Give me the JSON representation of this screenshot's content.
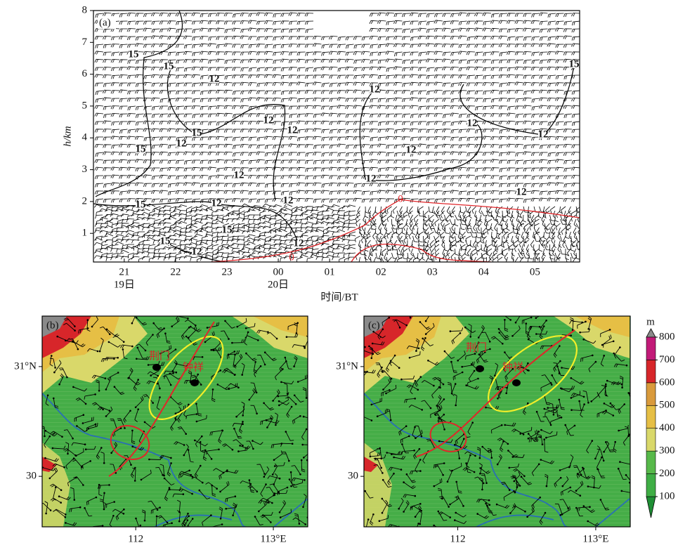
{
  "chart_data": [
    {
      "type": "time-height",
      "panel_label": "(a)",
      "xlabel": "时间/BT",
      "ylabel": "h/km",
      "xlim": [
        20.4,
        29.87
      ],
      "ylim": [
        0.1,
        8
      ],
      "xticks": [
        21,
        22,
        23,
        {
          "value": 24,
          "label": "00"
        },
        {
          "value": 25,
          "label": "01"
        },
        {
          "value": 26,
          "label": "02"
        },
        {
          "value": 27,
          "label": "03"
        },
        {
          "value": 28,
          "label": "04"
        },
        {
          "value": 29,
          "label": "05"
        }
      ],
      "date_labels": [
        {
          "value": 21,
          "label": "19日"
        },
        {
          "value": 24,
          "label": "20日"
        }
      ],
      "yticks": [
        1,
        2,
        3,
        4,
        5,
        6,
        7,
        8
      ],
      "contour_labels": [
        15,
        15,
        12,
        12,
        15,
        12,
        15,
        12,
        12,
        12,
        12,
        12,
        12,
        15,
        12,
        12,
        15,
        12,
        12,
        15,
        15,
        12,
        12
      ],
      "red_contour_labels": [
        0,
        0
      ]
    },
    {
      "type": "map",
      "panel_label": "(b)",
      "xlim": [
        111.32,
        113.25
      ],
      "ylim": [
        29.54,
        31.46
      ],
      "xticks": [
        112,
        {
          "value": 113,
          "label": "113°E"
        }
      ],
      "yticks": [
        30,
        {
          "value": 31,
          "label": "31°N"
        }
      ],
      "annotations": [
        "荆门",
        "钟祥"
      ]
    },
    {
      "type": "map",
      "panel_label": "(c)",
      "xlim": [
        111.32,
        113.25
      ],
      "ylim": [
        29.54,
        31.46
      ],
      "xticks": [
        112,
        {
          "value": 113,
          "label": "113°E"
        }
      ],
      "yticks": [
        30,
        {
          "value": 31,
          "label": "31°N"
        }
      ],
      "annotations": [
        "荆门",
        "钟祥"
      ]
    },
    {
      "type": "colorbar",
      "title": "m",
      "ylim": [
        100,
        800
      ],
      "yticks": [
        100,
        200,
        300,
        400,
        500,
        600,
        700,
        800
      ],
      "colors": [
        "#3fae45",
        "#57b94a",
        "#d9d86a",
        "#e6bf45",
        "#d99a3c",
        "#d7262a",
        "#c21a78"
      ],
      "under_color": "#1f8f35",
      "over_color": "#8a8a8a"
    }
  ]
}
